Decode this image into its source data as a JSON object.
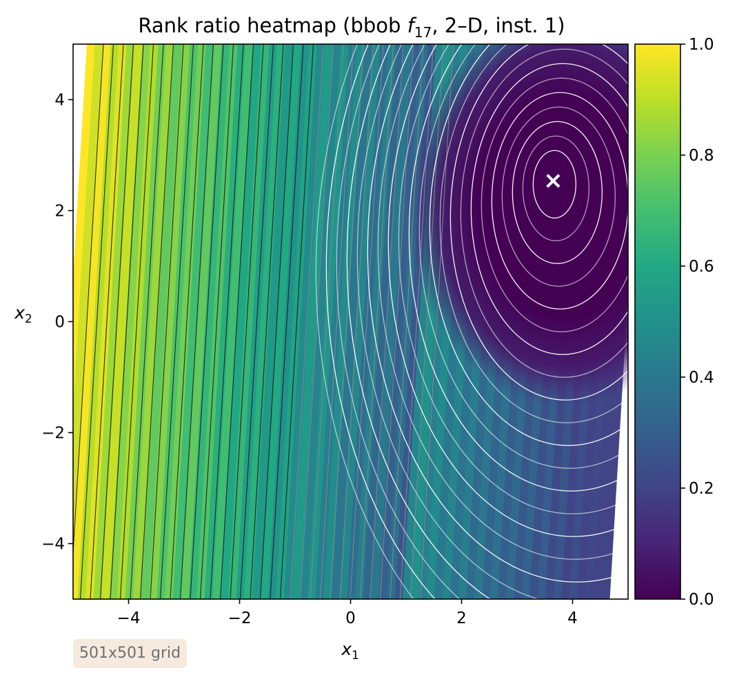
{
  "chart_data": {
    "type": "heatmap",
    "title_main": "Rank ratio heatmap (bbob ",
    "title_fn": "f",
    "title_fn_sub": "17",
    "title_tail": ", 2–D, inst. 1)",
    "xlabel_main": "x",
    "xlabel_sub": "1",
    "ylabel_main": "x",
    "ylabel_sub": "2",
    "xlim": [
      -5,
      5
    ],
    "ylim": [
      -5,
      5
    ],
    "x_ticks": [
      -4,
      -2,
      0,
      2,
      4
    ],
    "x_tick_labels": [
      "−4",
      "−2",
      "0",
      "2",
      "4"
    ],
    "y_ticks": [
      -4,
      -2,
      0,
      2,
      4
    ],
    "y_tick_labels": [
      "−4",
      "−2",
      "0",
      "2",
      "4"
    ],
    "colorbar": {
      "range": [
        0.0,
        1.0
      ],
      "ticks": [
        0.0,
        0.2,
        0.4,
        0.6,
        0.8,
        1.0
      ],
      "tick_labels": [
        "0.0",
        "0.2",
        "0.4",
        "0.6",
        "0.8",
        "1.0"
      ],
      "colormap": "viridis"
    },
    "optimum_marker": {
      "x": 3.65,
      "y": 2.55,
      "symbol": "×",
      "color": "#ffffff"
    },
    "grid": false,
    "grid_resolution": "501x501 grid"
  },
  "annotation": {
    "text": "501x501 grid"
  },
  "colors": {
    "viridis": [
      "#440154",
      "#482475",
      "#414487",
      "#355f8d",
      "#2a788e",
      "#21918c",
      "#22a884",
      "#44bf70",
      "#7ad151",
      "#bddf26",
      "#fde725"
    ],
    "marker": "#ffffff",
    "contour_light": "#ffffff",
    "contour_dark": "#1a1a1a",
    "badge_bg": "#f6eadf",
    "badge_text": "#6f6f6f"
  }
}
